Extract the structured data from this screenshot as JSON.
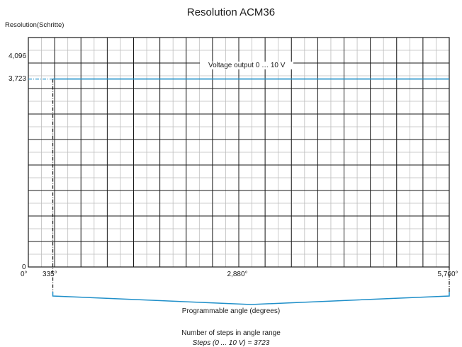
{
  "chart_data": {
    "type": "line",
    "title": "Resolution ACM36",
    "ylabel": "Resolution(Schritte)",
    "xlabel": "Programmable angle (degrees)",
    "xlim": [
      0,
      5760
    ],
    "ylim": [
      0,
      4096
    ],
    "x_tick_labels": [
      "0°",
      "335°",
      "2,880°",
      "5,760°"
    ],
    "y_tick_labels": [
      "0",
      "3,723",
      "4,096"
    ],
    "series": [
      {
        "name": "Voltage output 0 … 10 V",
        "x": [
          335,
          5760
        ],
        "y": [
          3723,
          3723
        ],
        "color": "#1f8fc9"
      }
    ],
    "reference_line": {
      "y": 3723,
      "x": 335
    },
    "bracket_range": [
      335,
      5760
    ],
    "grid": true
  },
  "footer": {
    "line1": "Number of steps in angle range",
    "line2": "Steps (0 ... 10 V) = 3723"
  },
  "colors": {
    "series": "#1f8fc9",
    "grid_minor": "#bdbdbd",
    "grid_major": "#1a1a1a"
  }
}
